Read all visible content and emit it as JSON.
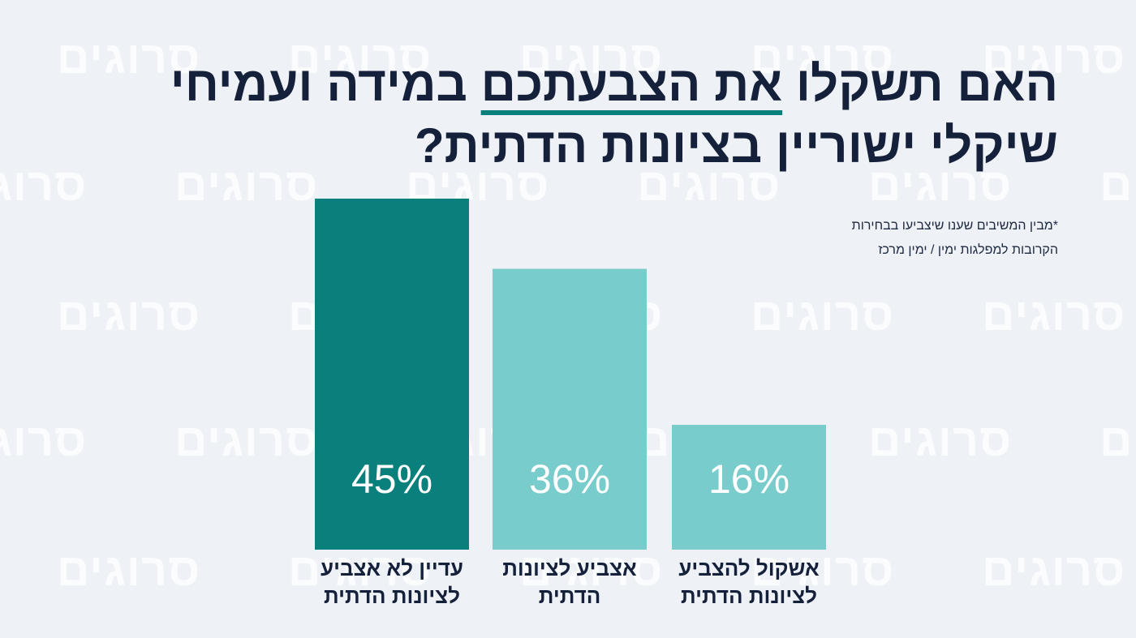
{
  "watermark_text": "סרוגים",
  "title": {
    "line1_before": "האם תשקלו ",
    "line1_underlined": "את הצבעתכם",
    "line1_after": " במידה ועמיחי",
    "line2": "שיקלי ישוריין בציונות הדתית?"
  },
  "footnote": {
    "line1": "*מבין המשיבים שענו שיצביעו בבחירות",
    "line2": "הקרובות למפלגות ימין / ימין מרכז"
  },
  "colors": {
    "background": "#eef2f6",
    "title": "#15213b",
    "accent_underline": "#0a807c",
    "bar_primary": "#0a807c",
    "bar_secondary": "#78cccb"
  },
  "chart_data": {
    "type": "bar",
    "categories": [
      "עדיין לא אצביע לציונות הדתית",
      "אצביע לציונות הדתית",
      "אשקול להצביע לציונות הדתית"
    ],
    "category_lines": [
      [
        "עדיין לא אצביע",
        "לציונות הדתית"
      ],
      [
        "אצביע לציונות",
        "הדתית"
      ],
      [
        "אשקול להצביע",
        "לציונות הדתית"
      ]
    ],
    "values": [
      45,
      36,
      16
    ],
    "value_labels": [
      "45%",
      "36%",
      "16%"
    ],
    "bar_colors": [
      "#0a807c",
      "#78cccb",
      "#78cccb"
    ],
    "ylim": [
      0,
      45
    ],
    "xlabel": "",
    "ylabel": "",
    "grid": false,
    "legend": "none"
  }
}
